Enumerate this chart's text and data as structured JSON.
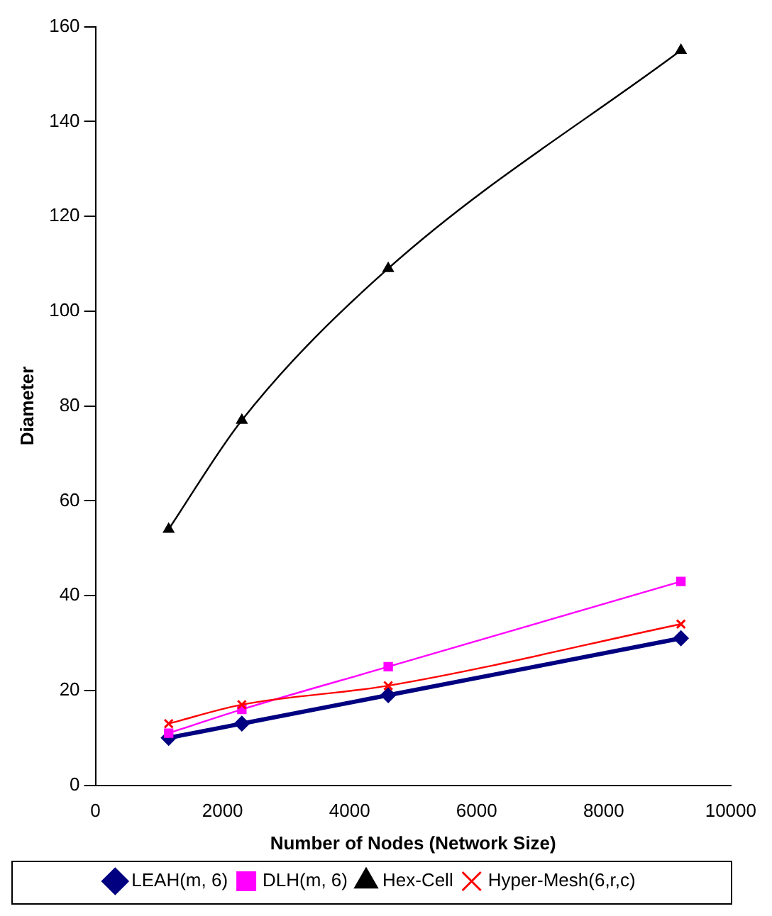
{
  "chart_data": {
    "type": "line",
    "xlabel": "Number of Nodes (Network Size)",
    "ylabel": "Diameter",
    "x": [
      1152,
      2304,
      4608,
      9216
    ],
    "series": [
      {
        "name": "LEAH(m, 6)",
        "color": "#000080",
        "marker": "diamond",
        "values": [
          10,
          13,
          19,
          31
        ]
      },
      {
        "name": "DLH(m, 6)",
        "color": "#ff00ff",
        "marker": "square",
        "values": [
          11,
          16,
          25,
          43
        ]
      },
      {
        "name": "Hex-Cell",
        "color": "#000000",
        "marker": "triangle",
        "values": [
          54,
          77,
          109,
          155
        ]
      },
      {
        "name": "Hyper-Mesh(6,r,c)",
        "color": "#ff0000",
        "marker": "cross",
        "values": [
          13,
          17,
          21,
          34
        ]
      }
    ],
    "xlim": [
      0,
      10000
    ],
    "xticks": [
      0,
      2000,
      4000,
      6000,
      8000,
      10000
    ],
    "ylim": [
      0,
      160
    ],
    "yticks": [
      0,
      20,
      40,
      60,
      80,
      100,
      120,
      140,
      160
    ],
    "grid": false,
    "legend": "bottom"
  }
}
